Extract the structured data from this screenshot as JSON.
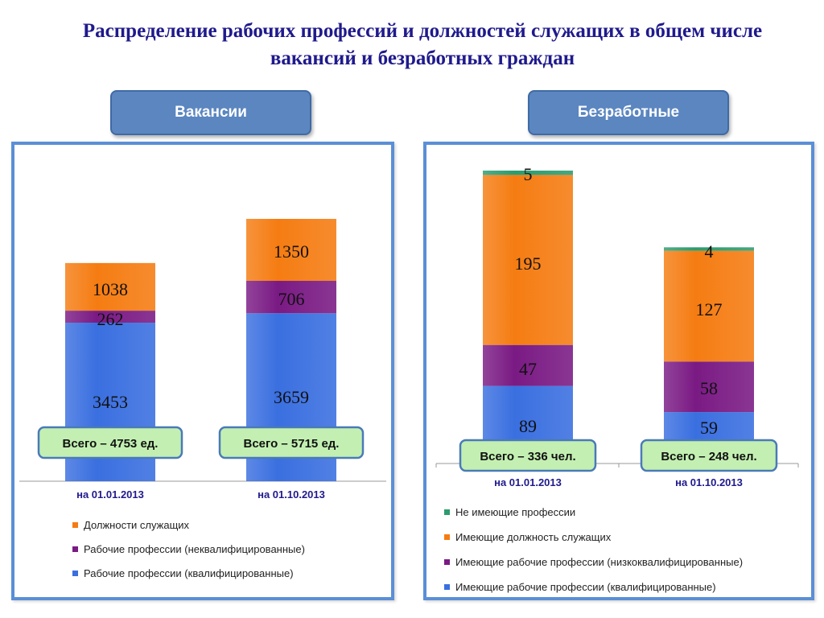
{
  "title": "Распределение рабочих профессий и должностей служащих в общем числе вакансий и безработных граждан",
  "colors": {
    "orange": "#f57c12",
    "purple": "#7a1a84",
    "blue": "#3a6fe0",
    "green": "#2d9b6e",
    "title": "#1f1a8c",
    "total_box_bg": "#c3f0b2",
    "total_box_border": "#4a7ab8",
    "axis_label": "#1f1a8c"
  },
  "chart_data": [
    {
      "type": "bar",
      "stacked": true,
      "panel_title": "Вакансии",
      "categories": [
        "на 01.01.2013",
        "на 01.10.2013"
      ],
      "series": [
        {
          "name": "Рабочие профессии (квалифицированные)",
          "values": [
            3453,
            3659
          ],
          "color": "#3a6fe0"
        },
        {
          "name": "Рабочие профессии (неквалифицированные)",
          "values": [
            262,
            706
          ],
          "color": "#7a1a84"
        },
        {
          "name": "Должности служащих",
          "values": [
            1038,
            1350
          ],
          "color": "#f57c12"
        }
      ],
      "totals": [
        "Всего – 4753 ед.",
        "Всего – 5715 ед."
      ],
      "legend_order": [
        "Должности служащих",
        "Рабочие профессии (неквалифицированные)",
        "Рабочие профессии (квалифицированные)"
      ],
      "legend": "bottom"
    },
    {
      "type": "bar",
      "stacked": true,
      "panel_title": "Безработные",
      "categories": [
        "на 01.01.2013",
        "на 01.10.2013"
      ],
      "series": [
        {
          "name": "Имеющие рабочие профессии (квалифицированные)",
          "values": [
            89,
            59
          ],
          "color": "#3a6fe0"
        },
        {
          "name": "Имеющие рабочие профессии (низкоквалифицированные)",
          "values": [
            47,
            58
          ],
          "color": "#7a1a84"
        },
        {
          "name": "Имеющие должность служащих",
          "values": [
            195,
            127
          ],
          "color": "#f57c12"
        },
        {
          "name": "Не имеющие профессии",
          "values": [
            5,
            4
          ],
          "color": "#2d9b6e"
        }
      ],
      "totals": [
        "Всего – 336 чел.",
        "Всего – 248 чел."
      ],
      "legend_order": [
        "Не имеющие профессии",
        "Имеющие должность служащих",
        "Имеющие рабочие профессии (низкоквалифицированные)",
        "Имеющие рабочие профессии (квалифицированные)"
      ],
      "legend": "bottom"
    }
  ]
}
